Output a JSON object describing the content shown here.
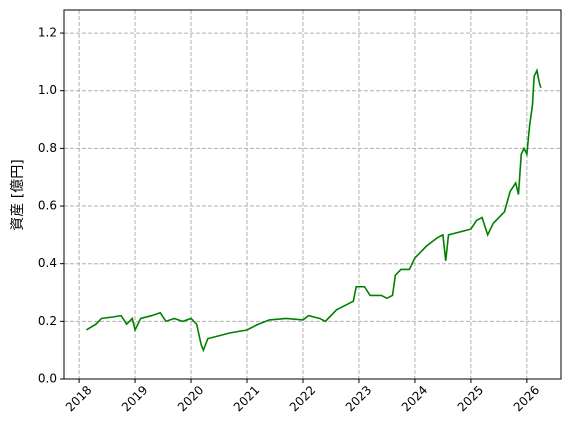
{
  "chart_data": {
    "type": "line",
    "y_label": "資産 [億円]",
    "x": [
      2018.13,
      2018.3,
      2018.4,
      2018.6,
      2018.75,
      2018.85,
      2018.95,
      2019.0,
      2019.1,
      2019.3,
      2019.45,
      2019.55,
      2019.7,
      2019.85,
      2020.0,
      2020.1,
      2020.18,
      2020.22,
      2020.3,
      2020.5,
      2020.7,
      2021.0,
      2021.2,
      2021.4,
      2021.7,
      2022.0,
      2022.1,
      2022.3,
      2022.4,
      2022.6,
      2022.8,
      2022.9,
      2022.95,
      2023.1,
      2023.2,
      2023.4,
      2023.5,
      2023.6,
      2023.65,
      2023.75,
      2023.9,
      2024.0,
      2024.1,
      2024.2,
      2024.4,
      2024.5,
      2024.55,
      2024.6,
      2024.8,
      2025.0,
      2025.1,
      2025.2,
      2025.3,
      2025.4,
      2025.6,
      2025.7,
      2025.8,
      2025.85,
      2025.9,
      2025.95,
      2026.0,
      2026.05,
      2026.1,
      2026.13,
      2026.18,
      2026.22,
      2026.25
    ],
    "series": [
      {
        "color": "#008000",
        "values": [
          0.17,
          0.19,
          0.21,
          0.215,
          0.22,
          0.19,
          0.21,
          0.17,
          0.21,
          0.22,
          0.23,
          0.2,
          0.21,
          0.2,
          0.21,
          0.19,
          0.12,
          0.1,
          0.14,
          0.15,
          0.16,
          0.17,
          0.19,
          0.205,
          0.21,
          0.205,
          0.22,
          0.21,
          0.2,
          0.24,
          0.26,
          0.27,
          0.32,
          0.32,
          0.29,
          0.29,
          0.28,
          0.29,
          0.36,
          0.38,
          0.38,
          0.42,
          0.44,
          0.46,
          0.49,
          0.5,
          0.41,
          0.5,
          0.51,
          0.52,
          0.55,
          0.56,
          0.5,
          0.54,
          0.58,
          0.65,
          0.68,
          0.64,
          0.78,
          0.8,
          0.78,
          0.88,
          0.95,
          1.05,
          1.07,
          1.03,
          1.01
        ]
      }
    ],
    "xlim": [
      2017.73,
      2026.61
    ],
    "xticks": [
      2018,
      2019,
      2020,
      2021,
      2022,
      2023,
      2024,
      2025,
      2026
    ],
    "ylim": [
      0,
      1.28
    ],
    "yticks": [
      {
        "value": 0,
        "label": "0.0"
      },
      0.2,
      0.4,
      0.6,
      0.8,
      {
        "value": 1,
        "label": "1.0"
      },
      1.2
    ],
    "grid": true
  }
}
